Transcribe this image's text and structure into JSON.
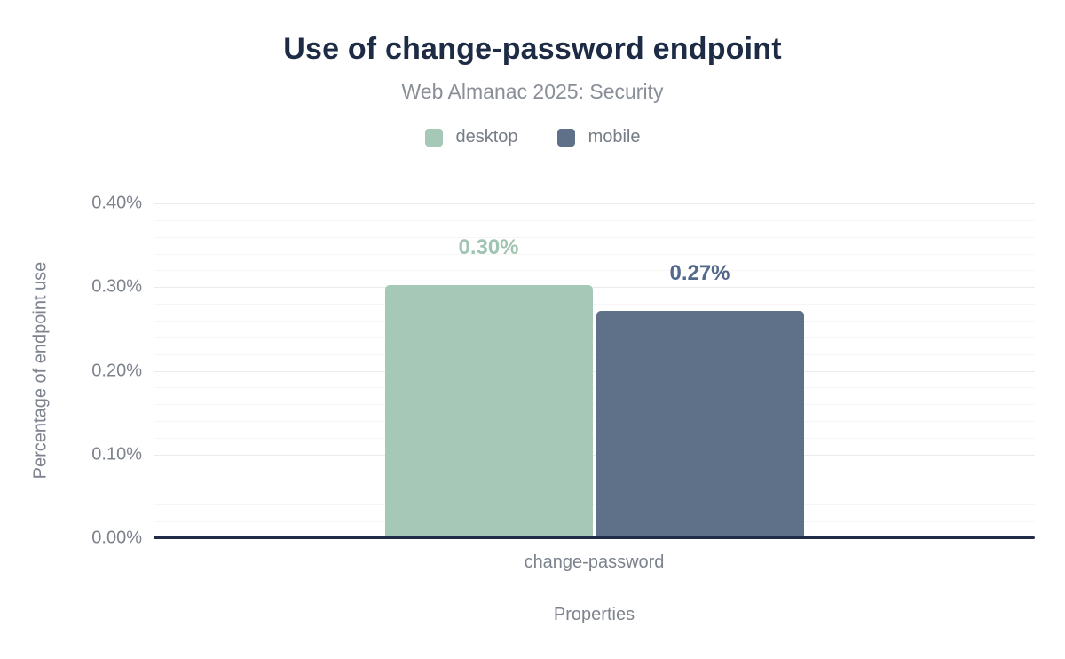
{
  "chart_data": {
    "type": "bar",
    "title": "Use of change-password endpoint",
    "subtitle": "Web Almanac 2025: Security",
    "categories": [
      "change-password"
    ],
    "series": [
      {
        "name": "desktop",
        "values": [
          0.3
        ],
        "data_labels": [
          "0.30%"
        ],
        "color": "#a5c8b7",
        "label_color": "#9fc4b1"
      },
      {
        "name": "mobile",
        "values": [
          0.27
        ],
        "data_labels": [
          "0.27%"
        ],
        "color": "#5f7089",
        "label_color": "#53688b"
      }
    ],
    "xlabel": "Properties",
    "ylabel": "Percentage of endpoint use",
    "ylim": [
      0,
      0.4
    ],
    "y_major_step": 0.1,
    "y_minor_step": 0.02,
    "y_tick_labels": [
      "0.00%",
      "0.10%",
      "0.20%",
      "0.30%",
      "0.40%"
    ],
    "grid": "horizontal-on",
    "legend_position": "top-center"
  },
  "colors": {
    "background": "#ffffff",
    "title": "#1d2b45",
    "subtitle": "#8a8f97",
    "axis_text": "#7d838d",
    "baseline": "#202c47",
    "gridline_major": "#ebebed",
    "gridline_minor": "#f6f6f7"
  }
}
